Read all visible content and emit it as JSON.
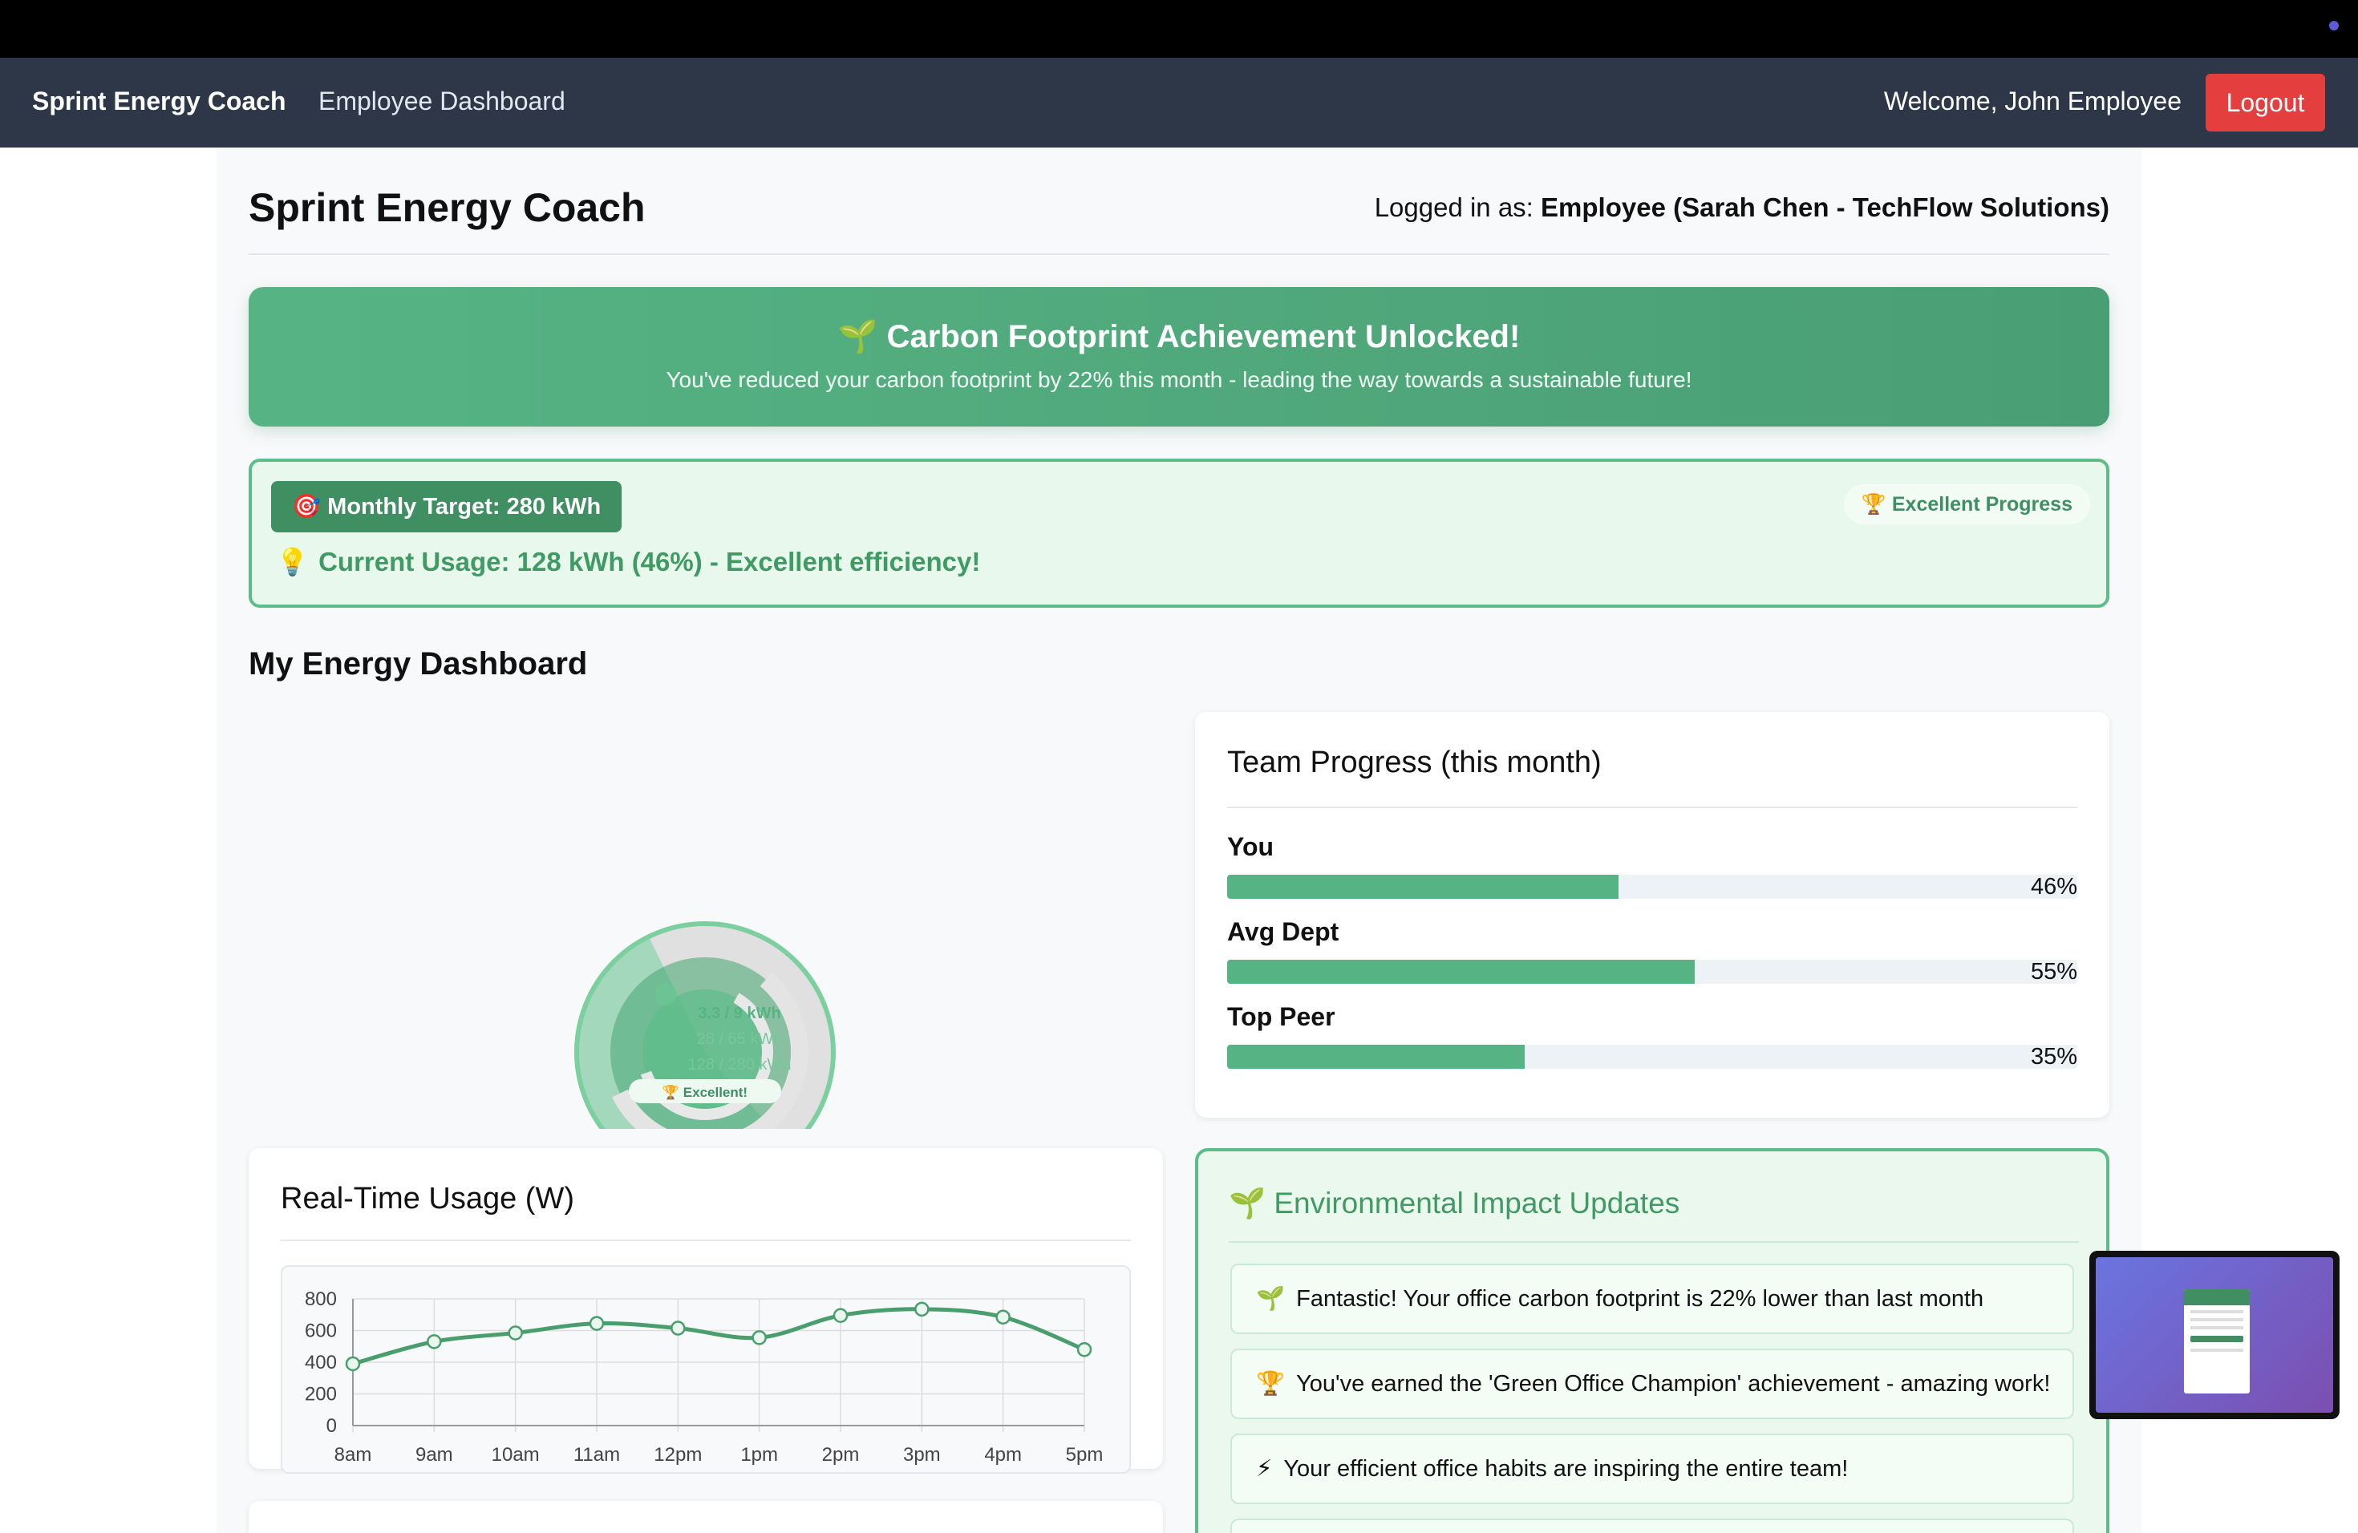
{
  "navbar": {
    "brand": "Sprint Energy Coach",
    "link": "Employee Dashboard",
    "welcome": "Welcome, John Employee",
    "logout": "Logout"
  },
  "header": {
    "title": "Sprint Energy Coach",
    "logged_in_prefix": "Logged in as:",
    "logged_in_user": "Employee (Sarah Chen - TechFlow Solutions)"
  },
  "banner": {
    "icon": "🌱",
    "title": "Carbon Footprint Achievement Unlocked!",
    "subtitle": "You've reduced your carbon footprint by 22% this month - leading the way towards a sustainable future!"
  },
  "target": {
    "pill_icon": "🎯",
    "pill": "Monthly Target: 280 kWh",
    "badge_icon": "🏆",
    "badge": "Excellent Progress",
    "usage_icon": "💡",
    "usage": "Current Usage: 128 kWh (46%) - Excellent efficiency!"
  },
  "dashboard": {
    "title": "My Energy Dashboard",
    "gauge": {
      "daily": "3.3 / 9 kWh",
      "weekly": "28 / 65 kWh",
      "monthly": "128 / 280 kWh",
      "badge": "🏆 Excellent!"
    }
  },
  "team": {
    "title": "Team Progress (this month)",
    "rows": [
      {
        "label": "You",
        "value": 46,
        "pct": "46%"
      },
      {
        "label": "Avg Dept",
        "value": 55,
        "pct": "55%"
      },
      {
        "label": "Top Peer",
        "value": 35,
        "pct": "35%"
      }
    ]
  },
  "realtime": {
    "title": "Real-Time Usage (W)"
  },
  "environment": {
    "icon": "🌱",
    "title": "Environmental Impact Updates",
    "items": [
      {
        "icon": "🌱",
        "text": "Fantastic! Your office carbon footprint is 22% lower than last month"
      },
      {
        "icon": "🏆",
        "text": "You've earned the 'Green Office Champion' achievement - amazing work!"
      },
      {
        "icon": "⚡",
        "text": "Your efficient office habits are inspiring the entire team!"
      }
    ]
  },
  "chart_data": {
    "type": "line",
    "categories": [
      "8am",
      "9am",
      "10am",
      "11am",
      "12pm",
      "1pm",
      "2pm",
      "3pm",
      "4pm",
      "5pm"
    ],
    "series": [
      {
        "values": [
          390,
          530,
          585,
          645,
          615,
          555,
          695,
          735,
          685,
          480
        ]
      }
    ],
    "title": "Real-Time Usage (W)",
    "xlabel": "",
    "ylabel": "",
    "ylim": [
      0,
      800
    ],
    "yticks": [
      0,
      200,
      400,
      600,
      800
    ],
    "grid": true,
    "color": "#4a9e6e"
  }
}
